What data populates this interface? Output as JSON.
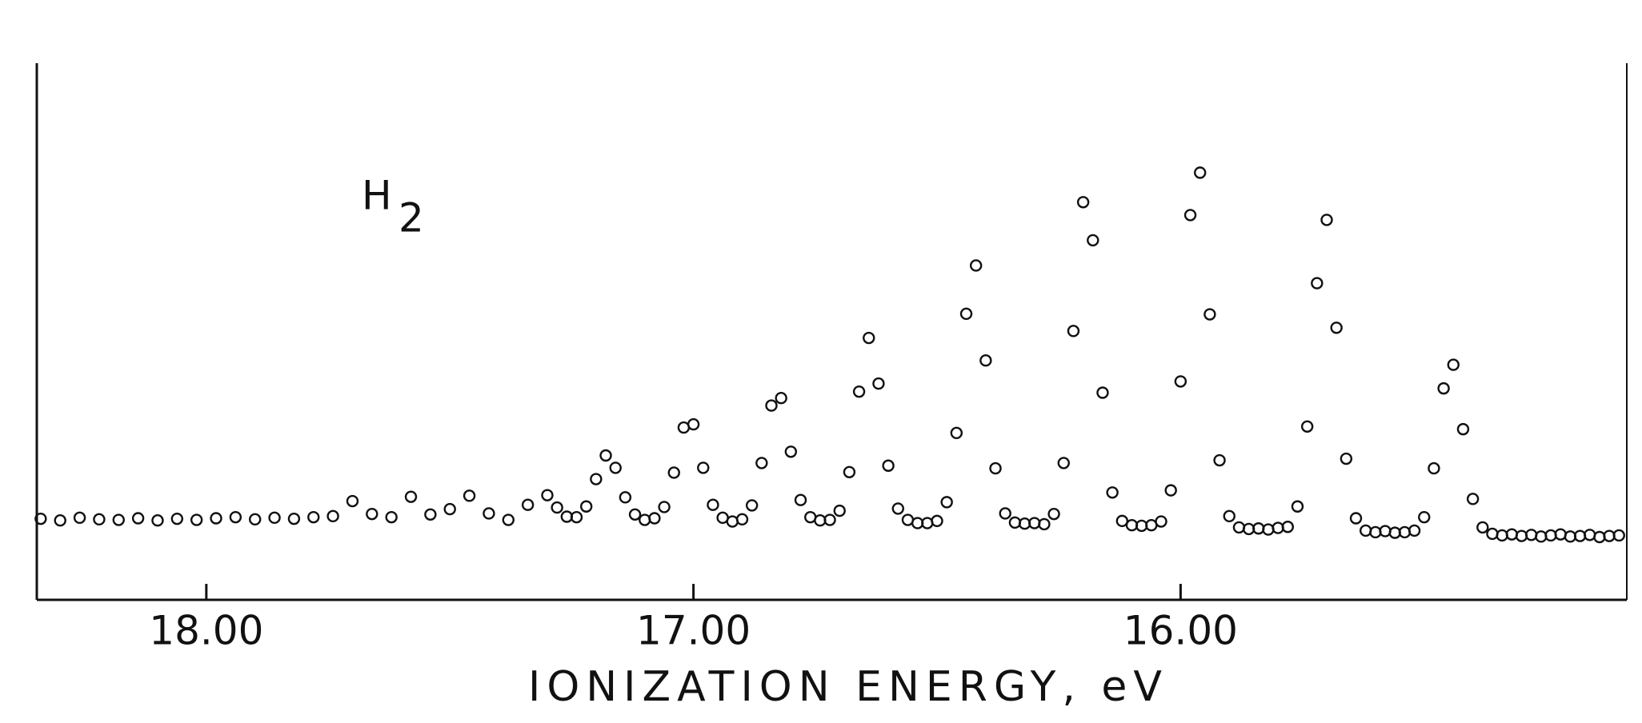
{
  "chart_data": {
    "type": "scatter",
    "xlabel": "IONIZATION ENERGY, eV",
    "annotation": "H",
    "annotation_subscript": "2",
    "color": "#111111",
    "xlim": [
      18.348,
      15.084
    ],
    "ylim": [
      0,
      100
    ],
    "xticks": [
      {
        "value": 18,
        "label": "18.00"
      },
      {
        "value": 17,
        "label": "17.00"
      },
      {
        "value": 16,
        "label": "16.00"
      }
    ],
    "x": [
      18.34,
      18.3,
      18.26,
      18.22,
      18.18,
      18.14,
      18.1,
      18.06,
      18.02,
      17.98,
      17.94,
      17.9,
      17.86,
      17.82,
      17.78,
      17.74,
      17.7,
      17.66,
      17.62,
      17.58,
      17.54,
      17.5,
      17.46,
      17.42,
      17.38,
      17.34,
      17.3,
      17.28,
      17.26,
      17.24,
      17.22,
      17.2,
      17.18,
      17.16,
      17.14,
      17.12,
      17.1,
      17.08,
      17.06,
      17.04,
      17.02,
      17.0,
      16.98,
      16.96,
      16.94,
      16.92,
      16.9,
      16.88,
      16.86,
      16.84,
      16.82,
      16.8,
      16.78,
      16.76,
      16.74,
      16.72,
      16.7,
      16.68,
      16.66,
      16.64,
      16.62,
      16.6,
      16.58,
      16.56,
      16.54,
      16.52,
      16.5,
      16.48,
      16.46,
      16.44,
      16.42,
      16.4,
      16.38,
      16.36,
      16.34,
      16.32,
      16.3,
      16.28,
      16.26,
      16.24,
      16.22,
      16.2,
      16.18,
      16.16,
      16.14,
      16.12,
      16.1,
      16.08,
      16.06,
      16.04,
      16.02,
      16.0,
      15.98,
      15.96,
      15.94,
      15.92,
      15.9,
      15.88,
      15.86,
      15.84,
      15.82,
      15.8,
      15.78,
      15.76,
      15.74,
      15.72,
      15.7,
      15.68,
      15.66,
      15.64,
      15.62,
      15.6,
      15.58,
      15.56,
      15.54,
      15.52,
      15.5,
      15.48,
      15.46,
      15.44,
      15.42,
      15.4,
      15.38,
      15.36,
      15.34,
      15.32,
      15.3,
      15.28,
      15.26,
      15.24,
      15.22,
      15.2,
      15.18,
      15.16,
      15.14,
      15.12,
      15.1
    ],
    "values": [
      15.1,
      14.8,
      15.3,
      15.0,
      14.9,
      15.2,
      14.8,
      15.1,
      14.9,
      15.2,
      15.4,
      15.0,
      15.3,
      15.1,
      15.4,
      15.6,
      18.4,
      16.0,
      15.4,
      19.2,
      15.9,
      16.9,
      19.4,
      16.1,
      14.9,
      17.7,
      19.5,
      17.2,
      15.5,
      15.4,
      17.4,
      22.5,
      26.9,
      24.6,
      19.1,
      15.9,
      14.9,
      15.2,
      17.3,
      23.7,
      32.1,
      32.7,
      24.6,
      17.7,
      15.3,
      14.6,
      15.0,
      17.6,
      25.5,
      36.2,
      37.6,
      27.6,
      18.6,
      15.4,
      14.8,
      14.9,
      16.6,
      23.8,
      38.8,
      48.8,
      40.3,
      25.0,
      17.0,
      14.9,
      14.3,
      14.3,
      14.7,
      18.2,
      31.1,
      53.3,
      62.3,
      44.6,
      24.5,
      16.1,
      14.4,
      14.2,
      14.3,
      14.1,
      16.0,
      25.5,
      50.1,
      74.1,
      67.0,
      38.6,
      20.0,
      14.7,
      13.9,
      13.8,
      13.9,
      14.6,
      20.4,
      40.7,
      71.7,
      79.6,
      53.2,
      26.0,
      15.6,
      13.5,
      13.2,
      13.3,
      13.1,
      13.4,
      13.6,
      17.4,
      32.3,
      59.0,
      70.8,
      50.7,
      26.3,
      15.2,
      12.9,
      12.6,
      12.8,
      12.5,
      12.6,
      12.9,
      15.4,
      24.5,
      39.4,
      43.8,
      31.8,
      18.8,
      13.5,
      12.3,
      12.0,
      12.2,
      11.9,
      12.1,
      11.8,
      12.0,
      12.2,
      11.8,
      11.9,
      12.1,
      11.7,
      11.9,
      12.0
    ]
  }
}
